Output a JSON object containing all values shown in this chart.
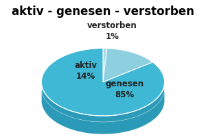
{
  "title": "aktiv - genesen - verstorben",
  "labels": [
    "verstorben",
    "aktiv",
    "genesen"
  ],
  "values": [
    1,
    14,
    85
  ],
  "colors_top": [
    "#aed8e6",
    "#8ecfe0",
    "#3eb8d4"
  ],
  "colors_side": [
    "#7ab8cc",
    "#6ab0c2",
    "#2a9ab8"
  ],
  "bg_color": "#ffffff",
  "title_fontsize": 12,
  "label_fontsize": 8.5,
  "startangle": 90,
  "depth": 0.08
}
